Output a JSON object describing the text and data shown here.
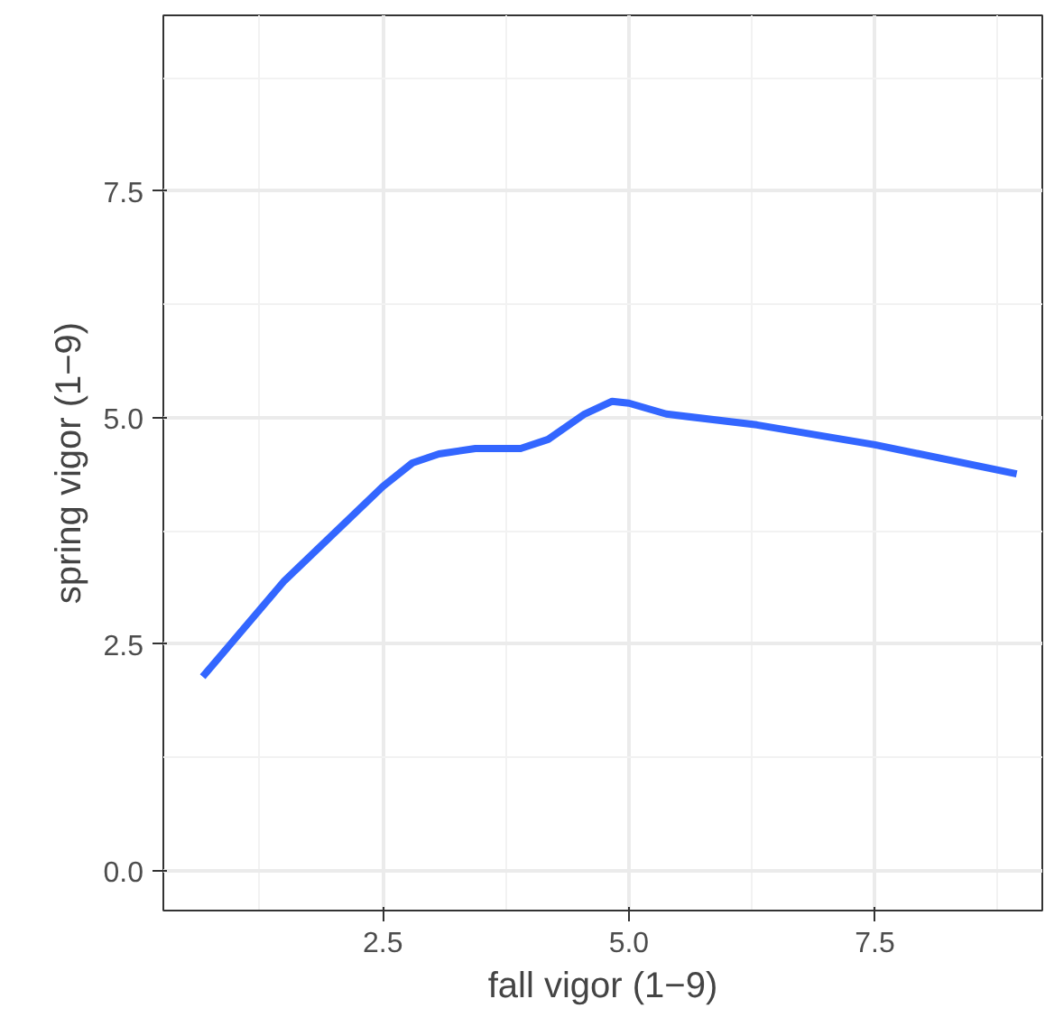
{
  "chart_data": {
    "type": "line",
    "xlabel": "fall vigor (1−9)",
    "ylabel": "spring vigor (1−9)",
    "x": [
      0.67,
      1.5,
      2.5,
      2.8,
      3.07,
      3.44,
      3.9,
      4.18,
      4.55,
      4.83,
      5.0,
      5.38,
      6.3,
      7.5,
      8.94
    ],
    "series": [
      {
        "color": "#3366ff",
        "values": [
          2.14,
          3.2,
          4.24,
          4.5,
          4.6,
          4.66,
          4.66,
          4.76,
          5.04,
          5.18,
          5.16,
          5.04,
          4.92,
          4.7,
          4.38
        ]
      }
    ],
    "xlim": [
      0.27,
      9.2
    ],
    "ylim": [
      -0.44,
      9.44
    ],
    "xticks": [
      {
        "value": 2.5,
        "label": "2.5"
      },
      {
        "value": 5,
        "label": "5.0"
      },
      {
        "value": 7.5,
        "label": "7.5"
      }
    ],
    "yticks": [
      {
        "value": 0,
        "label": "0.0"
      },
      {
        "value": 2.5,
        "label": "2.5"
      },
      {
        "value": 5,
        "label": "5.0"
      },
      {
        "value": 7.5,
        "label": "7.5"
      }
    ],
    "grid": true,
    "line_style": "solid",
    "marker": "none"
  }
}
